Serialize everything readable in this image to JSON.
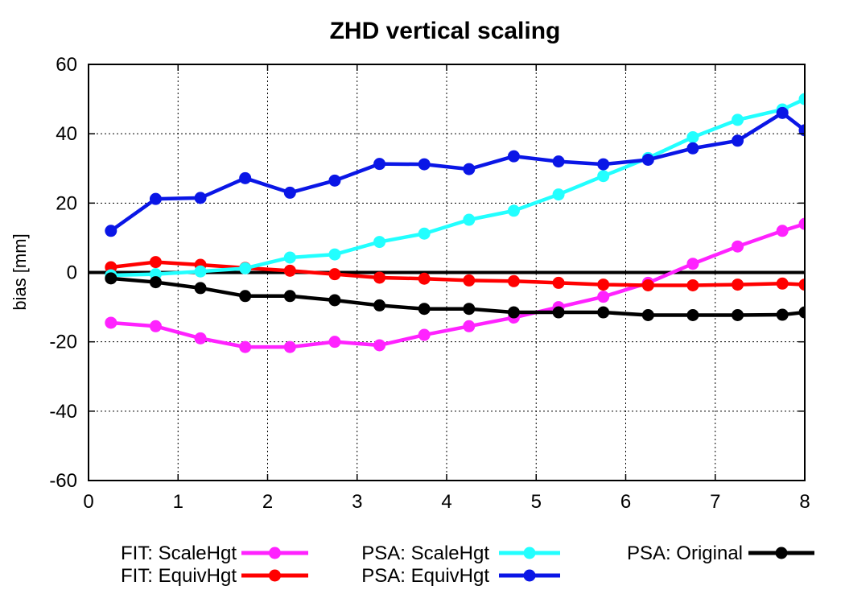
{
  "chart_data": {
    "type": "line",
    "title": "ZHD vertical scaling",
    "xlabel": "",
    "ylabel": "bias [mm]",
    "xlim": [
      0,
      8
    ],
    "ylim": [
      -60,
      60
    ],
    "xticks": [
      "0",
      "1",
      "2",
      "3",
      "4",
      "5",
      "6",
      "7",
      "8"
    ],
    "yticks": [
      "-60",
      "-40",
      "-20",
      "0",
      "20",
      "40",
      "60"
    ],
    "grid": true,
    "zero_line": true,
    "legend_position": "bottom",
    "x": [
      0.25,
      0.75,
      1.25,
      1.75,
      2.25,
      2.75,
      3.25,
      3.75,
      4.25,
      4.75,
      5.25,
      5.75,
      6.25,
      6.75,
      7.25,
      7.75,
      8.0
    ],
    "series": [
      {
        "name": "FIT: ScaleHgt",
        "color": "#ff22ff",
        "values": [
          -14.5,
          -15.5,
          -19,
          -21.5,
          -21.5,
          -20,
          -21,
          -18,
          -15.5,
          -13,
          -10,
          -7,
          -3,
          2.5,
          7.5,
          12,
          14
        ]
      },
      {
        "name": "FIT: EquivHgt",
        "color": "#ff0000",
        "values": [
          1.5,
          3,
          2.2,
          1.3,
          0.5,
          -0.5,
          -1.5,
          -1.8,
          -2.3,
          -2.5,
          -3,
          -3.5,
          -3.7,
          -3.7,
          -3.5,
          -3.2,
          -3.5
        ]
      },
      {
        "name": "PSA: ScaleHgt",
        "color": "#22ffff",
        "values": [
          -0.8,
          -0.5,
          0.3,
          1.2,
          4.3,
          5.2,
          8.8,
          11.2,
          15.2,
          17.8,
          22.5,
          27.8,
          33,
          39,
          44,
          47,
          50
        ]
      },
      {
        "name": "PSA: EquivHgt",
        "color": "#0a16e6",
        "values": [
          12,
          21.2,
          21.5,
          27.2,
          23,
          26.5,
          31.3,
          31.2,
          29.8,
          33.5,
          32,
          31.2,
          32.5,
          35.8,
          38,
          46,
          41
        ]
      },
      {
        "name": "PSA: Original",
        "color": "#000000",
        "values": [
          -1.7,
          -2.8,
          -4.5,
          -6.8,
          -6.8,
          -8,
          -9.5,
          -10.5,
          -10.5,
          -11.5,
          -11.5,
          -11.5,
          -12.3,
          -12.3,
          -12.3,
          -12.2,
          -11.5
        ]
      }
    ]
  }
}
